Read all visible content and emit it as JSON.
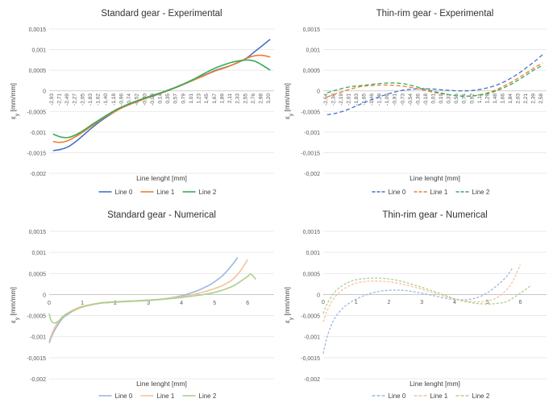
{
  "chart_data": [
    {
      "type": "line",
      "title": "Standard gear - Experimental",
      "xlabel": "Line lenght [mm]",
      "ylabel": "εy [mm/mm]",
      "ylim": [
        -0.002,
        0.0015
      ],
      "yticks": [
        "0,0015",
        "0,001",
        "0,0005",
        "0",
        "-0,0005",
        "-0,001",
        "-0,0015",
        "-0,002"
      ],
      "categories": [
        "-2,93",
        "-2,71",
        "-2,49",
        "-2,27",
        "-2,05",
        "-1,83",
        "-1,62",
        "-1,40",
        "-1,18",
        "-0,96",
        "-0,74",
        "-0,52",
        "-0,30",
        "-0,08",
        "0,14",
        "0,35",
        "0,57",
        "0,79",
        "1,01",
        "1,23",
        "1,45",
        "1,67",
        "1,89",
        "2,11",
        "2,33",
        "2,55",
        "2,76",
        "2,98",
        "3,20"
      ],
      "line_style": "solid",
      "legend_position": "bottom",
      "grid": true,
      "series": [
        {
          "name": "Line 0",
          "color": "#4472C4",
          "values": [
            -0.00145,
            -0.00142,
            -0.00135,
            -0.00122,
            -0.00106,
            -0.0009,
            -0.00075,
            -0.00062,
            -0.0005,
            -0.0004,
            -0.00032,
            -0.00025,
            -0.00018,
            -0.00012,
            -5e-05,
            2e-05,
            0.0001,
            0.00018,
            0.00026,
            0.00034,
            0.00042,
            0.0005,
            0.00056,
            0.00062,
            0.0007,
            0.0008,
            0.00095,
            0.0011,
            0.00125
          ]
        },
        {
          "name": "Line 1",
          "color": "#ED7D31",
          "values": [
            -0.00123,
            -0.00125,
            -0.0012,
            -0.0011,
            -0.00098,
            -0.00085,
            -0.00072,
            -0.0006,
            -0.0005,
            -0.0004,
            -0.00032,
            -0.00025,
            -0.00018,
            -0.00011,
            -5e-05,
            2e-05,
            9e-05,
            0.00017,
            0.00025,
            0.00033,
            0.00041,
            0.00049,
            0.00055,
            0.00062,
            0.0007,
            0.00079,
            0.00085,
            0.00086,
            0.00082
          ]
        },
        {
          "name": "Line 2",
          "color": "#3AAA5A",
          "values": [
            -0.00105,
            -0.00112,
            -0.00113,
            -0.00106,
            -0.00095,
            -0.00082,
            -0.0007,
            -0.00058,
            -0.00047,
            -0.00038,
            -0.0003,
            -0.00023,
            -0.00016,
            -0.0001,
            -4e-05,
            3e-05,
            0.0001,
            0.00018,
            0.00027,
            0.00037,
            0.00047,
            0.00056,
            0.00063,
            0.00069,
            0.00073,
            0.00075,
            0.00072,
            0.00062,
            0.0005
          ]
        }
      ]
    },
    {
      "type": "line",
      "title": "Thin-rim gear - Experimental",
      "xlabel": "Line lenght [mm]",
      "ylabel": "εy [mm/mm]",
      "ylim": [
        -0.002,
        0.0015
      ],
      "yticks": [
        "0,0015",
        "0,001",
        "0,0005",
        "0",
        "-0,0005",
        "-0,001",
        "-0,0015",
        "-0,002"
      ],
      "categories": [
        "-2,64",
        "-2,38",
        "-2,19",
        "-2,01",
        "-1,83",
        "-1,65",
        "-1,46",
        "-1,28",
        "-1,09",
        "-0,91",
        "-0,73",
        "-0,54",
        "-0,36",
        "-0,18",
        "0,01",
        "0,19",
        "0,37",
        "0,56",
        "0,74",
        "0,92",
        "1,11",
        "1,29",
        "1,48",
        "1,66",
        "1,84",
        "2,03",
        "2,21",
        "2,39",
        "2,58"
      ],
      "line_style": "dashed",
      "legend_position": "bottom",
      "grid": true,
      "series": [
        {
          "name": "Line 0",
          "color": "#4472C4",
          "values": [
            -0.00058,
            -0.00055,
            -0.0005,
            -0.00043,
            -0.00035,
            -0.00027,
            -0.0002,
            -0.00013,
            -7e-05,
            -2e-05,
            2e-05,
            4e-05,
            5e-05,
            5e-05,
            4e-05,
            2e-05,
            1e-05,
            0,
            0,
            1e-05,
            4e-05,
            8e-05,
            0.00014,
            0.00022,
            0.00032,
            0.00044,
            0.00058,
            0.00072,
            0.00088
          ]
        },
        {
          "name": "Line 1",
          "color": "#ED7D31",
          "values": [
            -0.00015,
            -8e-05,
            -2e-05,
            4e-05,
            9e-05,
            0.00012,
            0.00013,
            0.00014,
            0.00014,
            0.00013,
            0.00011,
            8e-05,
            4e-05,
            0,
            -4e-05,
            -7e-05,
            -0.0001,
            -0.00012,
            -0.00013,
            -0.00012,
            -9e-05,
            -4e-05,
            3e-05,
            0.00012,
            0.00022,
            0.00033,
            0.00045,
            0.00057,
            0.00068
          ]
        },
        {
          "name": "Line 2",
          "color": "#3AAA5A",
          "values": [
            -5e-05,
            1e-05,
            6e-05,
            0.0001,
            0.00012,
            0.00014,
            0.00016,
            0.00018,
            0.00019,
            0.00019,
            0.00017,
            0.00013,
            8e-05,
            3e-05,
            -2e-05,
            -6e-05,
            -0.0001,
            -0.00012,
            -0.00013,
            -0.00012,
            -0.0001,
            -6e-05,
            0,
            8e-05,
            0.00017,
            0.00028,
            0.0004,
            0.00052,
            0.00062
          ]
        }
      ]
    },
    {
      "type": "line",
      "title": "Standard gear - Numerical",
      "xlabel": "Line lenght [mm]",
      "ylabel": "εy [mm/mm]",
      "ylim": [
        -0.002,
        0.0015
      ],
      "xlim": [
        0,
        6.8
      ],
      "yticks": [
        "0,0015",
        "0,001",
        "0,0005",
        "0",
        "-0,0005",
        "-0,001",
        "-0,0015",
        "-0,002"
      ],
      "xticks": [
        "0",
        "1",
        "2",
        "3",
        "4",
        "5",
        "6"
      ],
      "line_style": "solid",
      "legend_position": "bottom",
      "grid": true,
      "series": [
        {
          "name": "Line 0",
          "color": "#9DB8E3",
          "x": [
            0,
            0.1,
            0.2,
            0.4,
            0.6,
            0.8,
            1.0,
            1.3,
            1.6,
            2.0,
            2.5,
            3.0,
            3.5,
            4.0,
            4.3,
            4.6,
            4.9,
            5.2,
            5.4,
            5.55,
            5.7
          ],
          "values": [
            -0.00115,
            -0.00095,
            -0.0008,
            -0.00057,
            -0.00045,
            -0.00036,
            -0.00029,
            -0.00024,
            -0.0002,
            -0.00018,
            -0.00016,
            -0.00014,
            -0.0001,
            -3e-05,
            4e-05,
            0.00013,
            0.00025,
            0.00042,
            0.00058,
            0.00072,
            0.00088
          ]
        },
        {
          "name": "Line 1",
          "color": "#F5C39B",
          "x": [
            0,
            0.1,
            0.2,
            0.4,
            0.6,
            0.8,
            1.0,
            1.3,
            1.6,
            2.0,
            2.5,
            3.0,
            3.5,
            4.0,
            4.4,
            4.8,
            5.2,
            5.5,
            5.7,
            5.85,
            6.0
          ],
          "values": [
            -0.0011,
            -0.0009,
            -0.00074,
            -0.00053,
            -0.00042,
            -0.00034,
            -0.00028,
            -0.00023,
            -0.00019,
            -0.00017,
            -0.00015,
            -0.00013,
            -0.0001,
            -5e-05,
            1e-05,
            9e-05,
            0.0002,
            0.00033,
            0.00048,
            0.00064,
            0.00083
          ]
        },
        {
          "name": "Line 2",
          "color": "#A9D18E",
          "x": [
            0,
            0.05,
            0.15,
            0.3,
            0.5,
            0.8,
            1.0,
            1.3,
            1.6,
            2.0,
            2.5,
            3.0,
            3.5,
            4.0,
            4.5,
            5.0,
            5.5,
            5.8,
            6.0,
            6.1,
            6.25
          ],
          "values": [
            -0.00045,
            -0.0006,
            -0.00068,
            -0.00062,
            -0.00048,
            -0.00036,
            -0.0003,
            -0.00024,
            -0.0002,
            -0.00018,
            -0.00016,
            -0.00014,
            -0.00011,
            -7e-05,
            -2e-05,
            5e-05,
            0.00018,
            0.00032,
            0.00043,
            0.00048,
            0.00036
          ]
        }
      ]
    },
    {
      "type": "line",
      "title": "Thin-rim gear - Numerical",
      "xlabel": "Line lenght [mm]",
      "ylabel": "εy [mm/mm]",
      "ylim": [
        -0.002,
        0.0015
      ],
      "xlim": [
        0,
        6.8
      ],
      "yticks": [
        "0,0015",
        "0,001",
        "0,0005",
        "0",
        "-0,0005",
        "-0,001",
        "-0,0015",
        "-0,002"
      ],
      "xticks": [
        "0",
        "1",
        "2",
        "3",
        "4",
        "5",
        "6"
      ],
      "line_style": "dashed",
      "legend_position": "bottom",
      "grid": true,
      "series": [
        {
          "name": "Line 0",
          "color": "#9DB8E3",
          "x": [
            0,
            0.1,
            0.25,
            0.4,
            0.6,
            0.8,
            1.0,
            1.3,
            1.6,
            2.0,
            2.4,
            2.8,
            3.2,
            3.6,
            4.0,
            4.4,
            4.7,
            5.0,
            5.3,
            5.55,
            5.75
          ],
          "values": [
            -0.0014,
            -0.00105,
            -0.00072,
            -0.0005,
            -0.00032,
            -0.0002,
            -0.00011,
            -1e-05,
            6e-05,
            0.0001,
            0.0001,
            6e-05,
            0,
            -7e-05,
            -0.00012,
            -0.00012,
            -7e-05,
            4e-05,
            0.00022,
            0.0004,
            0.00061
          ]
        },
        {
          "name": "Line 1",
          "color": "#F5C39B",
          "x": [
            0,
            0.1,
            0.25,
            0.4,
            0.6,
            0.8,
            1.0,
            1.3,
            1.6,
            2.0,
            2.4,
            2.8,
            3.2,
            3.6,
            4.0,
            4.4,
            4.8,
            5.2,
            5.5,
            5.75,
            6.0
          ],
          "values": [
            -0.00065,
            -0.00042,
            -0.00018,
            -2e-05,
            0.00012,
            0.00021,
            0.00027,
            0.00031,
            0.00032,
            0.0003,
            0.00025,
            0.00017,
            8e-05,
            -2e-05,
            -0.0001,
            -0.00016,
            -0.00017,
            -0.00011,
            5e-05,
            0.00028,
            0.00071
          ]
        },
        {
          "name": "Line 2",
          "color": "#A9D18E",
          "x": [
            0,
            0.1,
            0.25,
            0.4,
            0.6,
            0.8,
            1.0,
            1.3,
            1.6,
            2.0,
            2.4,
            2.8,
            3.2,
            3.6,
            4.0,
            4.4,
            4.8,
            5.2,
            5.6,
            6.0,
            6.3
          ],
          "values": [
            -0.00045,
            -0.00025,
            -5e-05,
            0.0001,
            0.00022,
            0.0003,
            0.00035,
            0.00038,
            0.00039,
            0.00037,
            0.00031,
            0.00022,
            0.00012,
            1e-05,
            -0.0001,
            -0.00018,
            -0.00022,
            -0.00022,
            -0.00016,
            3e-05,
            0.0002
          ]
        }
      ]
    }
  ]
}
